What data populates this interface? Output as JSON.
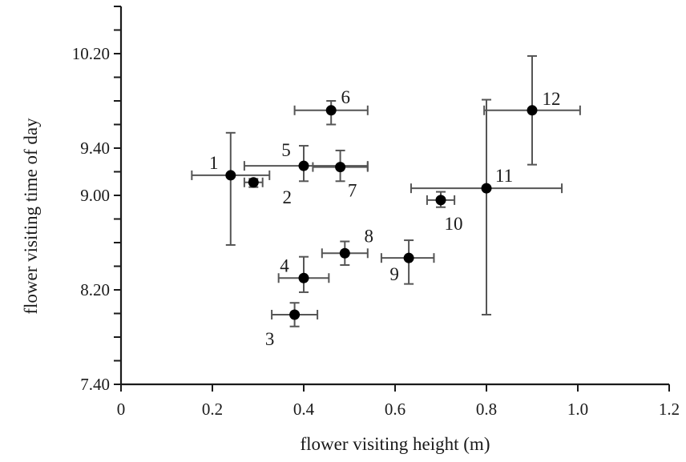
{
  "chart_data": {
    "type": "scatter",
    "title": "",
    "xlabel": "flower visiting height (m)",
    "ylabel": "flower visiting time of day",
    "xlim": [
      0,
      1.2
    ],
    "ylim": [
      7.4,
      10.6
    ],
    "x_ticks": [
      0,
      0.2,
      0.4,
      0.6,
      0.8,
      1.0,
      1.2
    ],
    "x_tick_labels": [
      "0",
      "0.2",
      "0.4",
      "0.6",
      "0.8",
      "1.0",
      "1.2"
    ],
    "y_ticks": [
      7.4,
      8.2,
      9.0,
      9.4,
      10.2
    ],
    "y_tick_labels": [
      "7.40",
      "8.20",
      "9.00",
      "9.40",
      "10.20"
    ],
    "grid": false,
    "error_bars": true,
    "points": [
      {
        "label": "1",
        "x": 0.24,
        "y": 9.17,
        "xerr": [
          0.155,
          0.325
        ],
        "yerr": [
          8.58,
          9.53
        ]
      },
      {
        "label": "2",
        "x": 0.29,
        "y": 9.11,
        "xerr": [
          0.27,
          0.31
        ],
        "yerr": [
          9.07,
          9.14
        ]
      },
      {
        "label": "3",
        "x": 0.38,
        "y": 7.99,
        "xerr": [
          0.33,
          0.43
        ],
        "yerr": [
          7.89,
          8.09
        ]
      },
      {
        "label": "4",
        "x": 0.4,
        "y": 8.3,
        "xerr": [
          0.345,
          0.455
        ],
        "yerr": [
          8.18,
          8.48
        ]
      },
      {
        "label": "5",
        "x": 0.4,
        "y": 9.25,
        "xerr": [
          0.27,
          0.54
        ],
        "yerr": [
          9.12,
          9.42
        ]
      },
      {
        "label": "6",
        "x": 0.46,
        "y": 9.72,
        "xerr": [
          0.38,
          0.54
        ],
        "yerr": [
          9.6,
          9.8
        ]
      },
      {
        "label": "7",
        "x": 0.48,
        "y": 9.24,
        "xerr": [
          0.42,
          0.54
        ],
        "yerr": [
          9.12,
          9.38
        ]
      },
      {
        "label": "8",
        "x": 0.49,
        "y": 8.51,
        "xerr": [
          0.44,
          0.54
        ],
        "yerr": [
          8.41,
          8.61
        ]
      },
      {
        "label": "9",
        "x": 0.63,
        "y": 8.47,
        "xerr": [
          0.57,
          0.685
        ],
        "yerr": [
          8.25,
          8.62
        ]
      },
      {
        "label": "10",
        "x": 0.7,
        "y": 8.96,
        "xerr": [
          0.67,
          0.73
        ],
        "yerr": [
          8.9,
          9.03
        ]
      },
      {
        "label": "11",
        "x": 0.8,
        "y": 9.06,
        "xerr": [
          0.635,
          0.965
        ],
        "yerr": [
          7.99,
          9.81
        ]
      },
      {
        "label": "12",
        "x": 0.9,
        "y": 9.72,
        "xerr": [
          0.795,
          1.005
        ],
        "yerr": [
          9.26,
          10.18
        ]
      }
    ]
  }
}
